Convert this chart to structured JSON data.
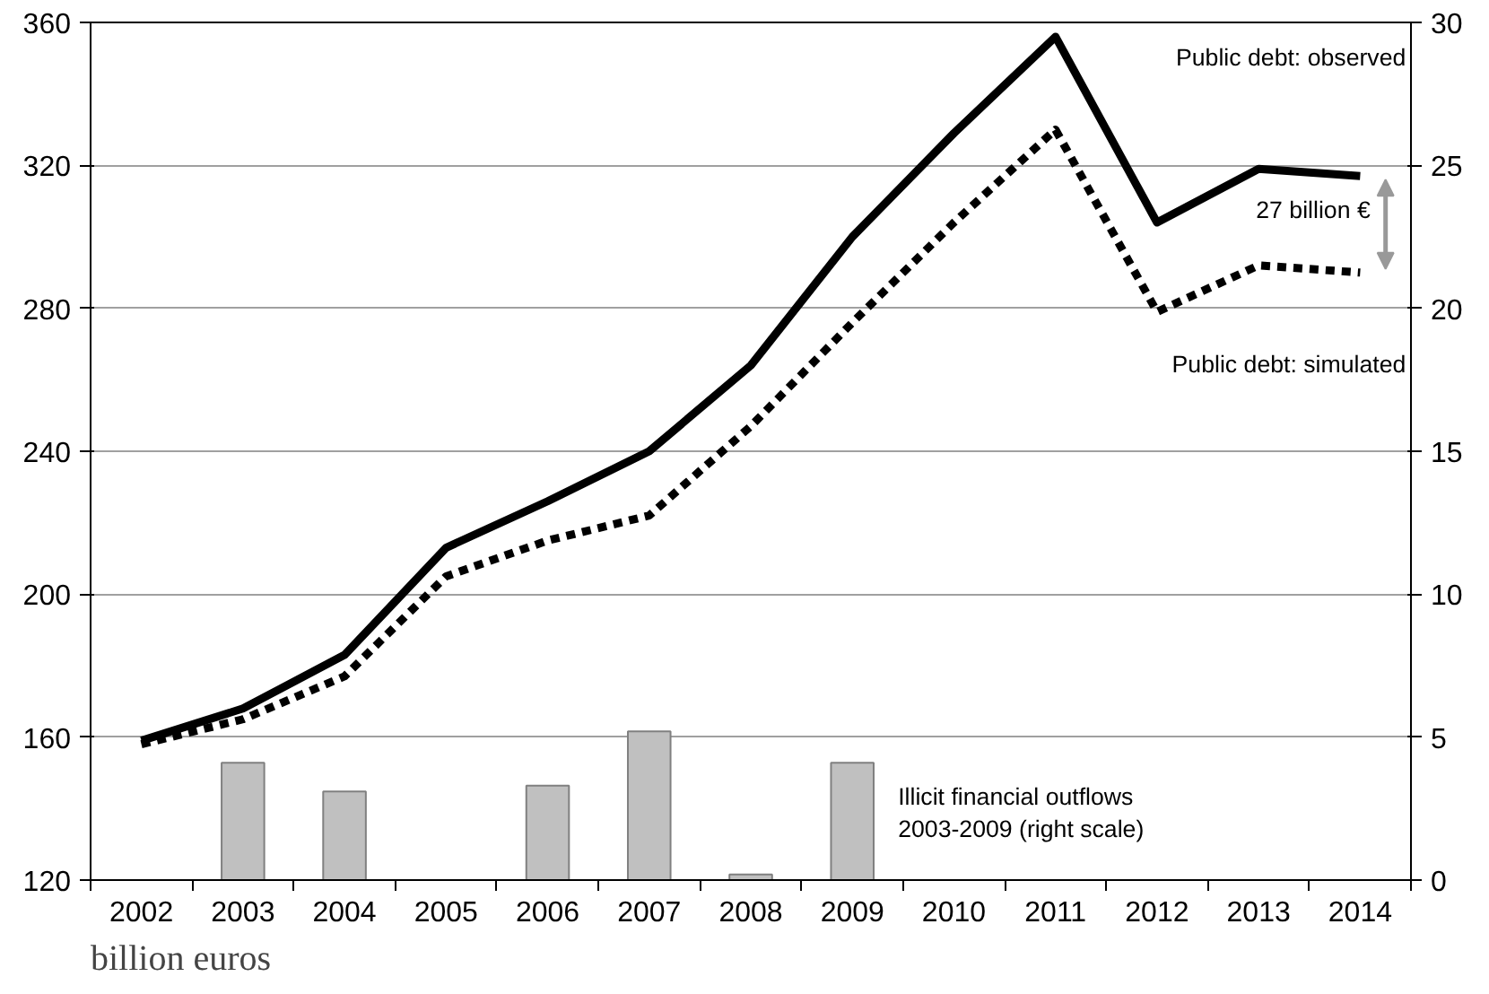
{
  "chart_data": {
    "type": "line",
    "categories": [
      "2002",
      "2003",
      "2004",
      "2005",
      "2006",
      "2007",
      "2008",
      "2009",
      "2010",
      "2011",
      "2012",
      "2013",
      "2014"
    ],
    "series": [
      {
        "name": "Public debt: observed",
        "color": "#000000",
        "line_style": "solid",
        "values": [
          159,
          168,
          183,
          213,
          226,
          240,
          264,
          300,
          329,
          356,
          304,
          319,
          317
        ]
      },
      {
        "name": "Public debt: simulated",
        "color": "#000000",
        "line_style": "dotted",
        "values": [
          158,
          165,
          177,
          205,
          215,
          222,
          247,
          276,
          304,
          330,
          279,
          292,
          290
        ]
      },
      {
        "name": "Illicit financial outflows 2003-2009 (right scale)",
        "type": "bar",
        "axis": "y2",
        "color": "#c0c0c0",
        "values": [
          null,
          4.1,
          3.1,
          null,
          3.3,
          5.2,
          0.2,
          4.1,
          null,
          null,
          null,
          null,
          null
        ]
      }
    ],
    "ylim": [
      120,
      360
    ],
    "yticks": [
      120,
      160,
      200,
      240,
      280,
      320,
      360
    ],
    "y2lim": [
      0,
      30
    ],
    "y2ticks": [
      0,
      5,
      10,
      15,
      20,
      25,
      30
    ],
    "grid": "y",
    "legend": "top right",
    "annotations": [
      "27 billion €",
      "billion euros"
    ]
  }
}
